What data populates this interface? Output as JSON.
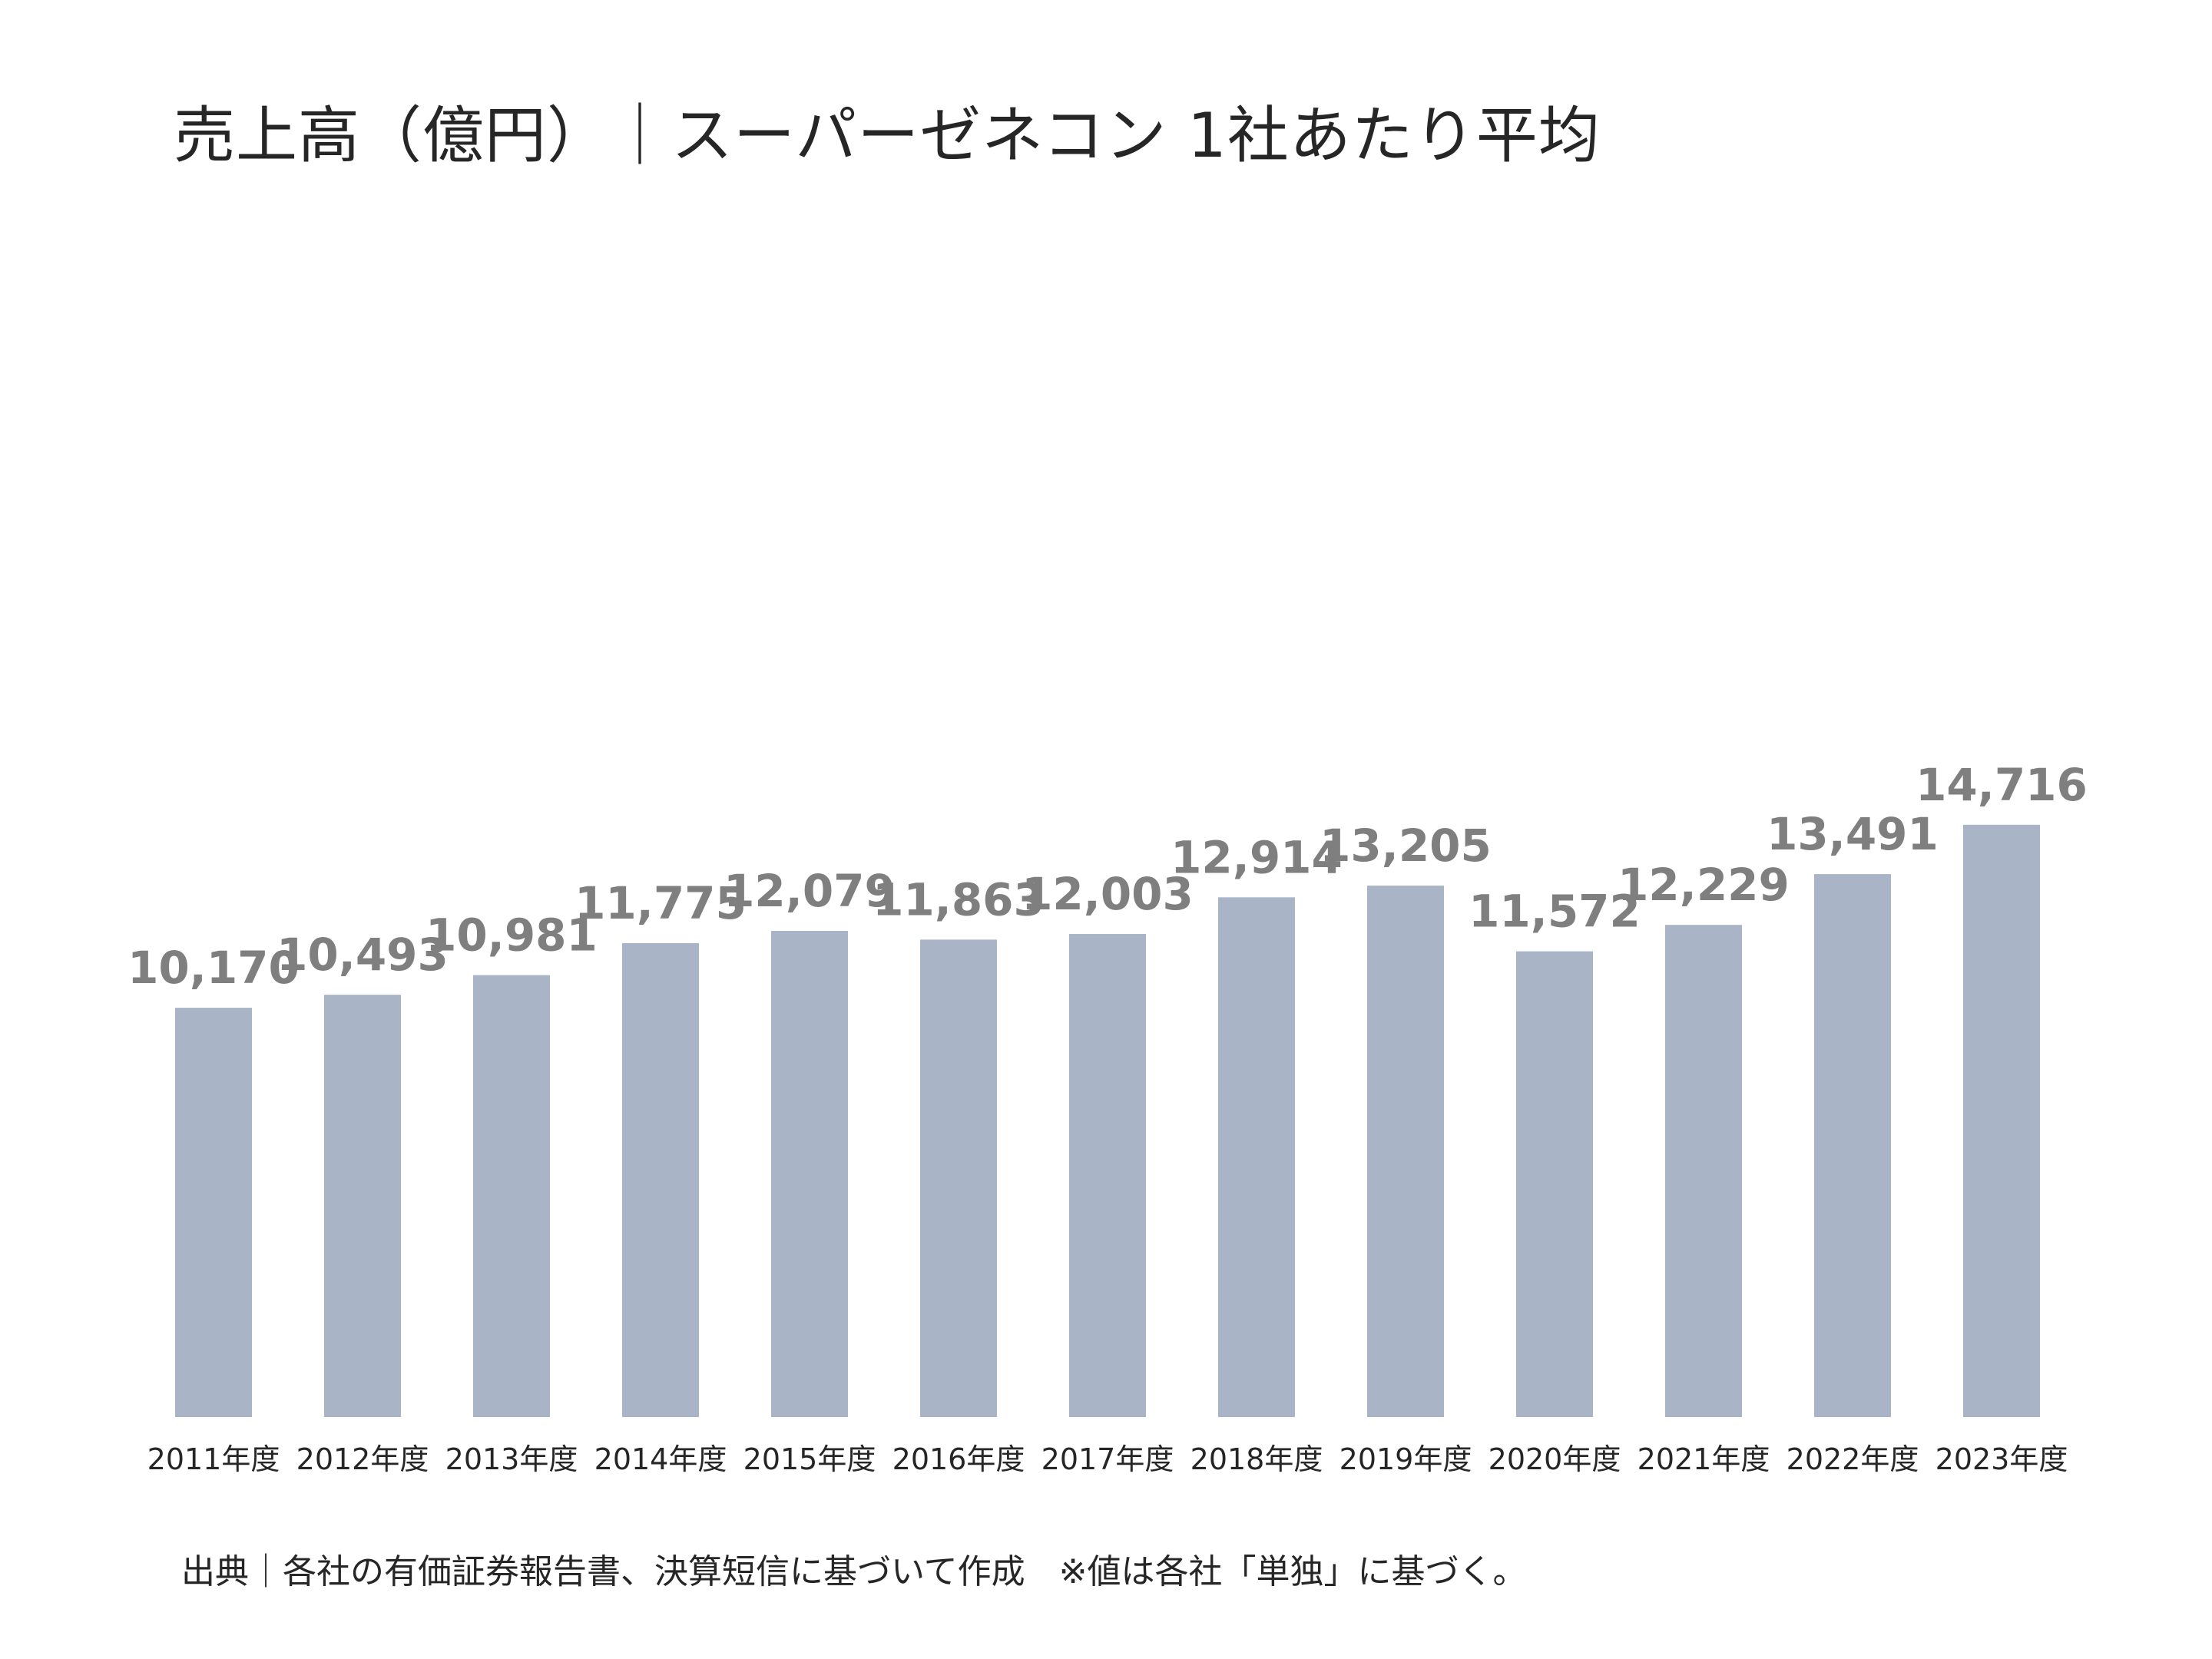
{
  "title": "売上高（億円）｜スーパーゼネコン 1社あたり平均",
  "source_note": "出典｜各社の有価証券報告書、決算短信に基づいて作成　※値は各社「単独」に基づく。",
  "colors": {
    "bar": "#a9b4c6",
    "data_label": "#7f7f7f",
    "text": "#262626"
  },
  "chart_data": {
    "type": "bar",
    "title": "売上高（億円）｜スーパーゼネコン 1社あたり平均",
    "xlabel": "",
    "ylabel": "",
    "grid": false,
    "legend": "none",
    "ylim": [
      0,
      15000
    ],
    "categories": [
      "2011年度",
      "2012年度",
      "2013年度",
      "2014年度",
      "2015年度",
      "2016年度",
      "2017年度",
      "2018年度",
      "2019年度",
      "2020年度",
      "2021年度",
      "2022年度",
      "2023年度"
    ],
    "values": [
      10170,
      10493,
      10981,
      11775,
      12079,
      11863,
      12003,
      12914,
      13205,
      11572,
      12229,
      13491,
      14716
    ],
    "value_labels": [
      "10,170",
      "10,493",
      "10,981",
      "11,775",
      "12,079",
      "11,863",
      "12,003",
      "12,914",
      "13,205",
      "11,572",
      "12,229",
      "13,491",
      "14,716"
    ]
  }
}
